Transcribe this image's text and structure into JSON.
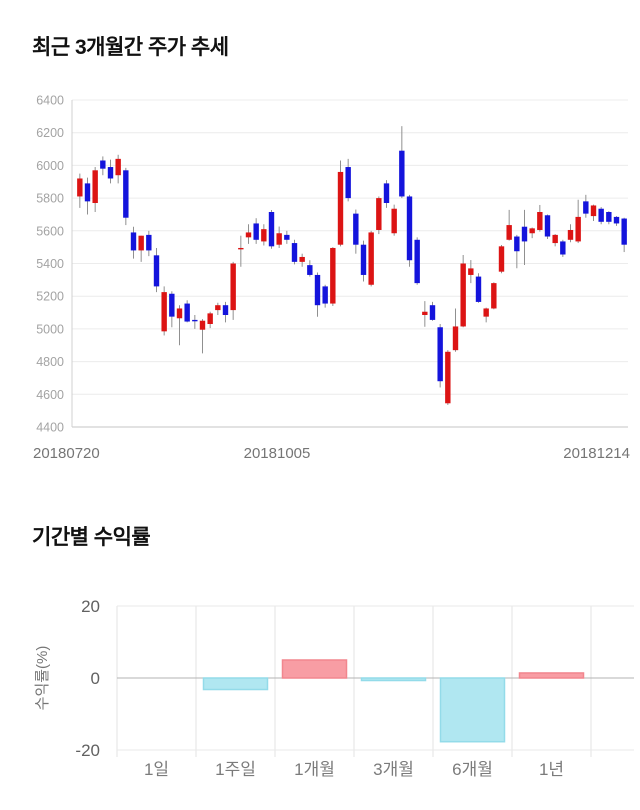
{
  "price_section": {
    "title": "최근 3개월간 주가 추세"
  },
  "returns_section": {
    "title": "기간별 수익률"
  },
  "chart_data": [
    {
      "type": "candlestick",
      "title": "최근 3개월간 주가 추세",
      "ylim": [
        4400,
        6400
      ],
      "y_ticks": [
        6400,
        6200,
        6000,
        5800,
        5600,
        5400,
        5200,
        5000,
        4800,
        4600,
        4400
      ],
      "x_tick_labels": [
        "20180720",
        "20181005",
        "20181214"
      ],
      "grid": true,
      "up_color": "#dc1414",
      "down_color": "#1414dc",
      "wick_color": "#909090",
      "candles_ohlc": [
        [
          5810,
          5950,
          5740,
          5920
        ],
        [
          5890,
          5925,
          5700,
          5780
        ],
        [
          5770,
          5990,
          5715,
          5970
        ],
        [
          6030,
          6055,
          5940,
          5980
        ],
        [
          5990,
          6035,
          5890,
          5920
        ],
        [
          5940,
          6065,
          5890,
          6040
        ],
        [
          5970,
          5985,
          5635,
          5680
        ],
        [
          5590,
          5625,
          5430,
          5480
        ],
        [
          5480,
          5570,
          5410,
          5570
        ],
        [
          5575,
          5600,
          5445,
          5480
        ],
        [
          5450,
          5495,
          5225,
          5260
        ],
        [
          4985,
          5260,
          4960,
          5225
        ],
        [
          5215,
          5230,
          5010,
          5075
        ],
        [
          5065,
          5145,
          4900,
          5125
        ],
        [
          5155,
          5175,
          5040,
          5045
        ],
        [
          5055,
          5085,
          5000,
          5050
        ],
        [
          4995,
          5060,
          4850,
          5050
        ],
        [
          5030,
          5105,
          5005,
          5095
        ],
        [
          5115,
          5160,
          5085,
          5145
        ],
        [
          5145,
          5165,
          5040,
          5085
        ],
        [
          5115,
          5410,
          5055,
          5400
        ],
        [
          5490,
          5570,
          5380,
          5495
        ],
        [
          5560,
          5640,
          5520,
          5590
        ],
        [
          5645,
          5677,
          5520,
          5545
        ],
        [
          5535,
          5640,
          5510,
          5610
        ],
        [
          5715,
          5727,
          5490,
          5505
        ],
        [
          5515,
          5626,
          5495,
          5585
        ],
        [
          5575,
          5600,
          5520,
          5545
        ],
        [
          5525,
          5545,
          5395,
          5410
        ],
        [
          5410,
          5460,
          5380,
          5440
        ],
        [
          5390,
          5420,
          5320,
          5330
        ],
        [
          5330,
          5345,
          5074,
          5145
        ],
        [
          5260,
          5270,
          5130,
          5155
        ],
        [
          5155,
          5500,
          5140,
          5495
        ],
        [
          5515,
          6030,
          5505,
          5960
        ],
        [
          5990,
          6040,
          5780,
          5800
        ],
        [
          5705,
          5730,
          5460,
          5515
        ],
        [
          5515,
          5540,
          5290,
          5330
        ],
        [
          5270,
          5600,
          5260,
          5590
        ],
        [
          5605,
          5810,
          5580,
          5800
        ],
        [
          5890,
          5910,
          5740,
          5770
        ],
        [
          5585,
          5760,
          5570,
          5735
        ],
        [
          6090,
          6240,
          5800,
          5810
        ],
        [
          5810,
          5820,
          5380,
          5420
        ],
        [
          5545,
          5560,
          5270,
          5280
        ],
        [
          5085,
          5170,
          5013,
          5105
        ],
        [
          5145,
          5165,
          5050,
          5055
        ],
        [
          5010,
          5030,
          4642,
          4680
        ],
        [
          4545,
          4870,
          4535,
          4860
        ],
        [
          4870,
          5125,
          4860,
          5015
        ],
        [
          5015,
          5452,
          5010,
          5400
        ],
        [
          5330,
          5421,
          5280,
          5370
        ],
        [
          5320,
          5340,
          5160,
          5165
        ],
        [
          5075,
          5130,
          5040,
          5125
        ],
        [
          5125,
          5285,
          5120,
          5280
        ],
        [
          5350,
          5513,
          5340,
          5505
        ],
        [
          5545,
          5728,
          5540,
          5635
        ],
        [
          5565,
          5575,
          5371,
          5475
        ],
        [
          5625,
          5728,
          5391,
          5535
        ],
        [
          5585,
          5620,
          5555,
          5615
        ],
        [
          5605,
          5758,
          5595,
          5715
        ],
        [
          5695,
          5700,
          5550,
          5565
        ],
        [
          5525,
          5580,
          5505,
          5575
        ],
        [
          5535,
          5545,
          5440,
          5455
        ],
        [
          5545,
          5640,
          5530,
          5605
        ],
        [
          5535,
          5790,
          5525,
          5685
        ],
        [
          5780,
          5820,
          5680,
          5705
        ],
        [
          5690,
          5760,
          5660,
          5755
        ],
        [
          5735,
          5745,
          5640,
          5655
        ],
        [
          5715,
          5720,
          5640,
          5655
        ],
        [
          5685,
          5690,
          5630,
          5645
        ],
        [
          5675,
          5680,
          5470,
          5515
        ]
      ]
    },
    {
      "type": "bar",
      "title": "기간별 수익률",
      "ylabel": "수익률(%)",
      "ylim": [
        -20,
        20
      ],
      "y_ticks": [
        20,
        0,
        -20
      ],
      "categories": [
        "1일",
        "1주일",
        "1개월",
        "3개월",
        "6개월",
        "1년"
      ],
      "values": [
        0,
        -3.2,
        5.0,
        -0.7,
        -17.7,
        1.4
      ],
      "positive_color": "#f89da4",
      "positive_border": "#f2868e",
      "negative_color": "#b0e7f1",
      "negative_border": "#93dbe9"
    }
  ]
}
